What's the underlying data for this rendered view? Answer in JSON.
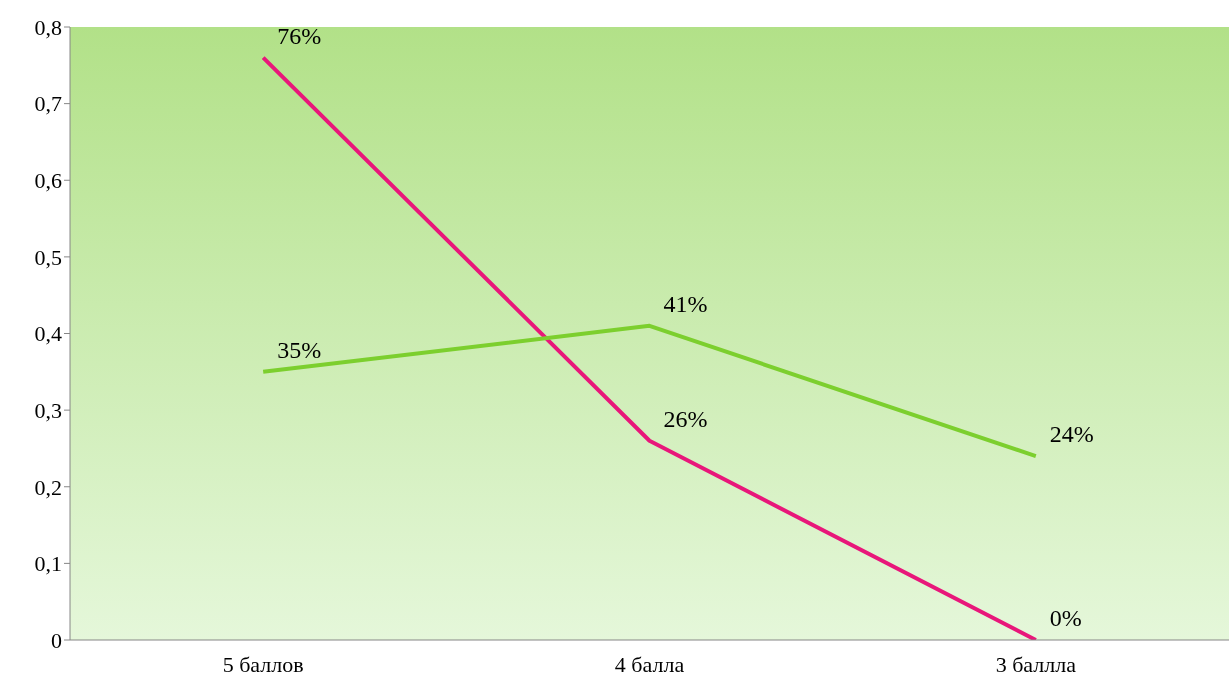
{
  "chart_data": {
    "type": "line",
    "categories": [
      "5 баллов",
      "4 балла",
      "3 баллла"
    ],
    "series": [
      {
        "color": "#e8177a",
        "values": [
          0.76,
          0.26,
          0
        ],
        "value_labels": [
          "76%",
          "26%",
          "0%"
        ]
      },
      {
        "color": "#7ccf2e",
        "values": [
          0.35,
          0.41,
          0.24
        ],
        "value_labels": [
          "35%",
          "41%",
          "24%"
        ]
      }
    ],
    "ylim": [
      0,
      0.8
    ],
    "yticks": [
      {
        "value": 0,
        "label": "0"
      },
      {
        "value": 0.1,
        "label": "0,1"
      },
      {
        "value": 0.2,
        "label": "0,2"
      },
      {
        "value": 0.3,
        "label": "0,3"
      },
      {
        "value": 0.4,
        "label": "0,4"
      },
      {
        "value": 0.5,
        "label": "0,5"
      },
      {
        "value": 0.6,
        "label": "0,6"
      },
      {
        "value": 0.7,
        "label": "0,7"
      },
      {
        "value": 0.8,
        "label": "0,8"
      }
    ],
    "marker": "none"
  }
}
